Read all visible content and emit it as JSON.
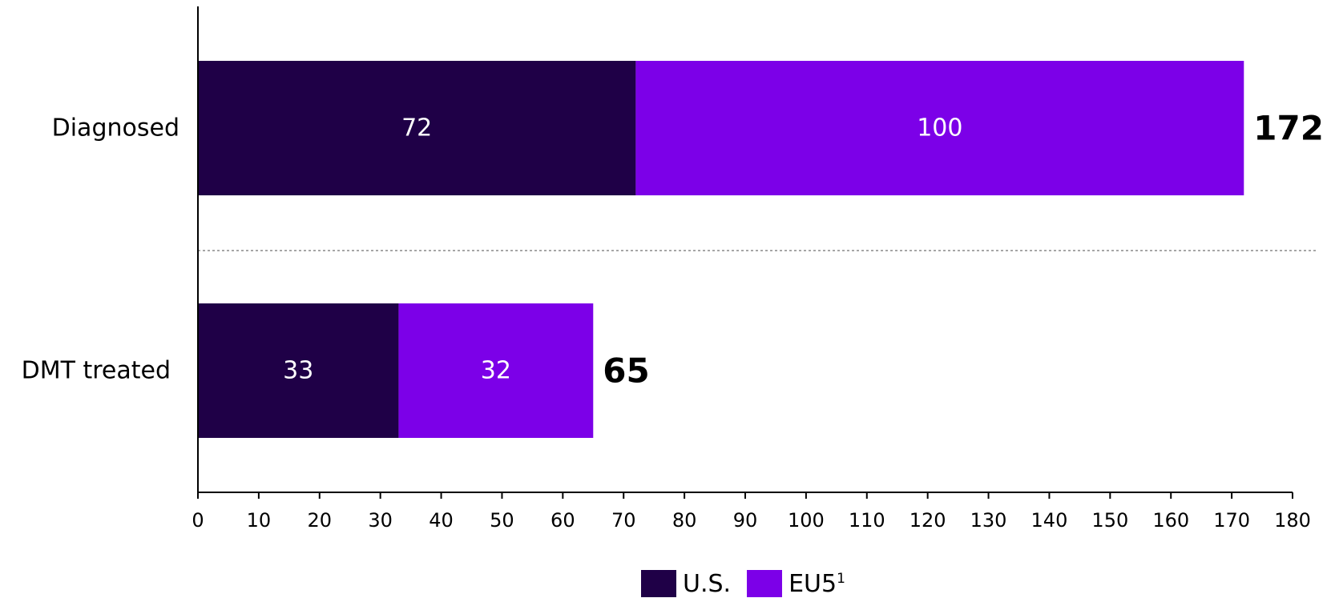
{
  "chart_data": {
    "type": "bar",
    "orientation": "horizontal",
    "stacked": true,
    "categories": [
      "Diagnosed",
      "DMT treated"
    ],
    "series": [
      {
        "name": "U.S.",
        "values": [
          72,
          33
        ],
        "color": "#1f0047"
      },
      {
        "name": "EU5",
        "name_superscript": "1",
        "values": [
          100,
          32
        ],
        "color": "#7c00e8"
      }
    ],
    "totals": [
      "172",
      "65"
    ],
    "xlim": [
      0,
      180
    ],
    "xticks": [
      0,
      10,
      20,
      30,
      40,
      50,
      60,
      70,
      80,
      90,
      100,
      110,
      120,
      130,
      140,
      150,
      160,
      170,
      180
    ],
    "title": "",
    "xlabel": "",
    "ylabel": "",
    "legend_position": "bottom-center",
    "category_separator": "dotted-gray"
  }
}
